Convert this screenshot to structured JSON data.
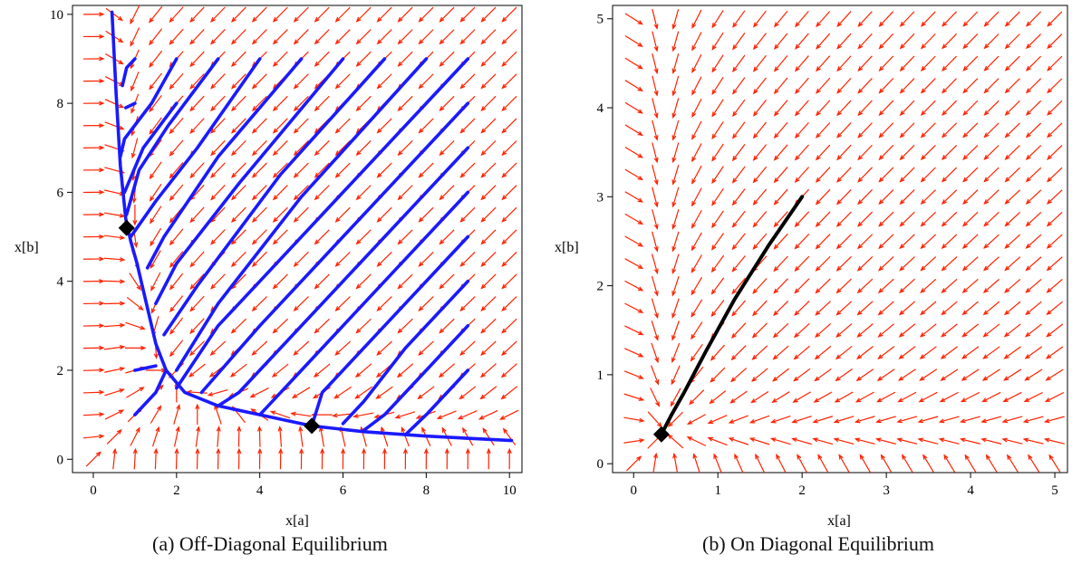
{
  "chart_data": [
    {
      "type": "phase_portrait",
      "caption": "(a)  Off-Diagonal Equilibrium",
      "xlabel": "x[a]",
      "ylabel": "x[b]",
      "xlim": [
        -0.5,
        10.3
      ],
      "ylim": [
        -0.3,
        10.2
      ],
      "xticks": [
        "0",
        "2",
        "4",
        "6",
        "8",
        "10"
      ],
      "xtick_values": [
        0,
        2,
        4,
        6,
        8,
        10
      ],
      "yticks": [
        "0",
        "2",
        "4",
        "6",
        "8",
        "10"
      ],
      "ytick_values": [
        0,
        2,
        4,
        6,
        8,
        10
      ],
      "field_color": "#ff2200",
      "trajectory_color": "#1a1aff",
      "marker_color": "#000000",
      "equilibria": [
        {
          "x": 0.8,
          "y": 5.2
        },
        {
          "x": 5.25,
          "y": 0.75
        }
      ],
      "trajectories": [
        [
          [
            0.45,
            10.05
          ],
          [
            0.55,
            8.2
          ],
          [
            0.65,
            6.6
          ],
          [
            0.78,
            5.4
          ],
          [
            0.9,
            4.9
          ],
          [
            1.05,
            4.4
          ],
          [
            1.25,
            3.6
          ],
          [
            1.5,
            2.6
          ],
          [
            1.75,
            2.0
          ],
          [
            2.2,
            1.5
          ],
          [
            3.0,
            1.2
          ],
          [
            4.0,
            1.0
          ],
          [
            5.25,
            0.75
          ],
          [
            6.5,
            0.62
          ],
          [
            8.0,
            0.52
          ],
          [
            10.05,
            0.42
          ]
        ],
        [
          [
            1.0,
            9.0
          ],
          [
            0.8,
            8.8
          ],
          [
            0.7,
            8.4
          ]
        ],
        [
          [
            1.0,
            8.0
          ],
          [
            0.78,
            7.9
          ]
        ],
        [
          [
            2.0,
            9.0
          ],
          [
            1.4,
            8.0
          ],
          [
            0.75,
            7.2
          ],
          [
            0.65,
            6.8
          ]
        ],
        [
          [
            2.0,
            8.0
          ],
          [
            1.2,
            7.0
          ],
          [
            0.75,
            6.0
          ]
        ],
        [
          [
            3.0,
            9.0
          ],
          [
            1.8,
            7.5
          ],
          [
            1.1,
            6.5
          ],
          [
            0.8,
            5.5
          ]
        ],
        [
          [
            4.0,
            9.0
          ],
          [
            2.5,
            7.0
          ],
          [
            1.5,
            5.8
          ],
          [
            0.9,
            5.0
          ]
        ],
        [
          [
            5.0,
            9.0
          ],
          [
            3.0,
            6.8
          ],
          [
            1.7,
            5.0
          ],
          [
            1.3,
            4.3
          ]
        ],
        [
          [
            6.0,
            9.0
          ],
          [
            3.5,
            6.2
          ],
          [
            2.0,
            4.4
          ],
          [
            1.5,
            3.5
          ]
        ],
        [
          [
            7.0,
            9.0
          ],
          [
            4.5,
            6.4
          ],
          [
            2.5,
            3.9
          ],
          [
            1.7,
            2.8
          ]
        ],
        [
          [
            8.0,
            9.0
          ],
          [
            5.0,
            5.9
          ],
          [
            3.0,
            3.5
          ],
          [
            2.0,
            2.0
          ]
        ],
        [
          [
            9.0,
            9.0
          ],
          [
            6.0,
            6.0
          ],
          [
            4.0,
            4.0
          ],
          [
            3.0,
            3.0
          ],
          [
            2.0,
            1.6
          ]
        ],
        [
          [
            9.0,
            8.0
          ],
          [
            6.0,
            5.0
          ],
          [
            4.0,
            3.0
          ],
          [
            2.6,
            1.5
          ]
        ],
        [
          [
            9.0,
            7.0
          ],
          [
            6.5,
            4.5
          ],
          [
            4.5,
            2.5
          ],
          [
            3.5,
            1.5
          ],
          [
            3.0,
            1.2
          ]
        ],
        [
          [
            9.0,
            6.0
          ],
          [
            7.0,
            4.0
          ],
          [
            5.0,
            2.0
          ],
          [
            4.2,
            1.2
          ],
          [
            4.0,
            1.0
          ]
        ],
        [
          [
            9.0,
            5.0
          ],
          [
            7.0,
            3.0
          ],
          [
            5.5,
            1.5
          ],
          [
            5.25,
            0.75
          ]
        ],
        [
          [
            9.0,
            4.0
          ],
          [
            7.5,
            2.5
          ],
          [
            6.5,
            1.3
          ],
          [
            6.0,
            0.8
          ]
        ],
        [
          [
            9.0,
            3.0
          ],
          [
            8.0,
            2.0
          ],
          [
            7.0,
            1.0
          ],
          [
            6.5,
            0.65
          ]
        ],
        [
          [
            9.0,
            2.0
          ],
          [
            8.0,
            1.0
          ],
          [
            7.5,
            0.55
          ]
        ],
        [
          [
            1.0,
            1.0
          ],
          [
            1.5,
            1.5
          ],
          [
            1.75,
            2.0
          ]
        ],
        [
          [
            1.0,
            2.0
          ],
          [
            1.5,
            2.1
          ]
        ]
      ]
    },
    {
      "type": "phase_portrait",
      "caption": "(b)  On Diagonal Equilibrium",
      "xlabel": "x[a]",
      "ylabel": "x[b]",
      "xlim": [
        -0.25,
        5.15
      ],
      "ylim": [
        -0.1,
        5.15
      ],
      "xticks": [
        "0",
        "1",
        "2",
        "3",
        "4",
        "5"
      ],
      "xtick_values": [
        0,
        1,
        2,
        3,
        4,
        5
      ],
      "yticks": [
        "0",
        "1",
        "2",
        "3",
        "4",
        "5"
      ],
      "ytick_values": [
        0,
        1,
        2,
        3,
        4,
        5
      ],
      "field_color": "#ff2200",
      "trajectory_color": "#000000",
      "marker_color": "#000000",
      "equilibria": [
        {
          "x": 0.33,
          "y": 0.33
        }
      ],
      "trajectories": [
        [
          [
            2.0,
            3.0
          ],
          [
            1.6,
            2.45
          ],
          [
            1.2,
            1.85
          ],
          [
            0.85,
            1.25
          ],
          [
            0.6,
            0.8
          ],
          [
            0.45,
            0.55
          ],
          [
            0.33,
            0.33
          ]
        ]
      ]
    }
  ]
}
